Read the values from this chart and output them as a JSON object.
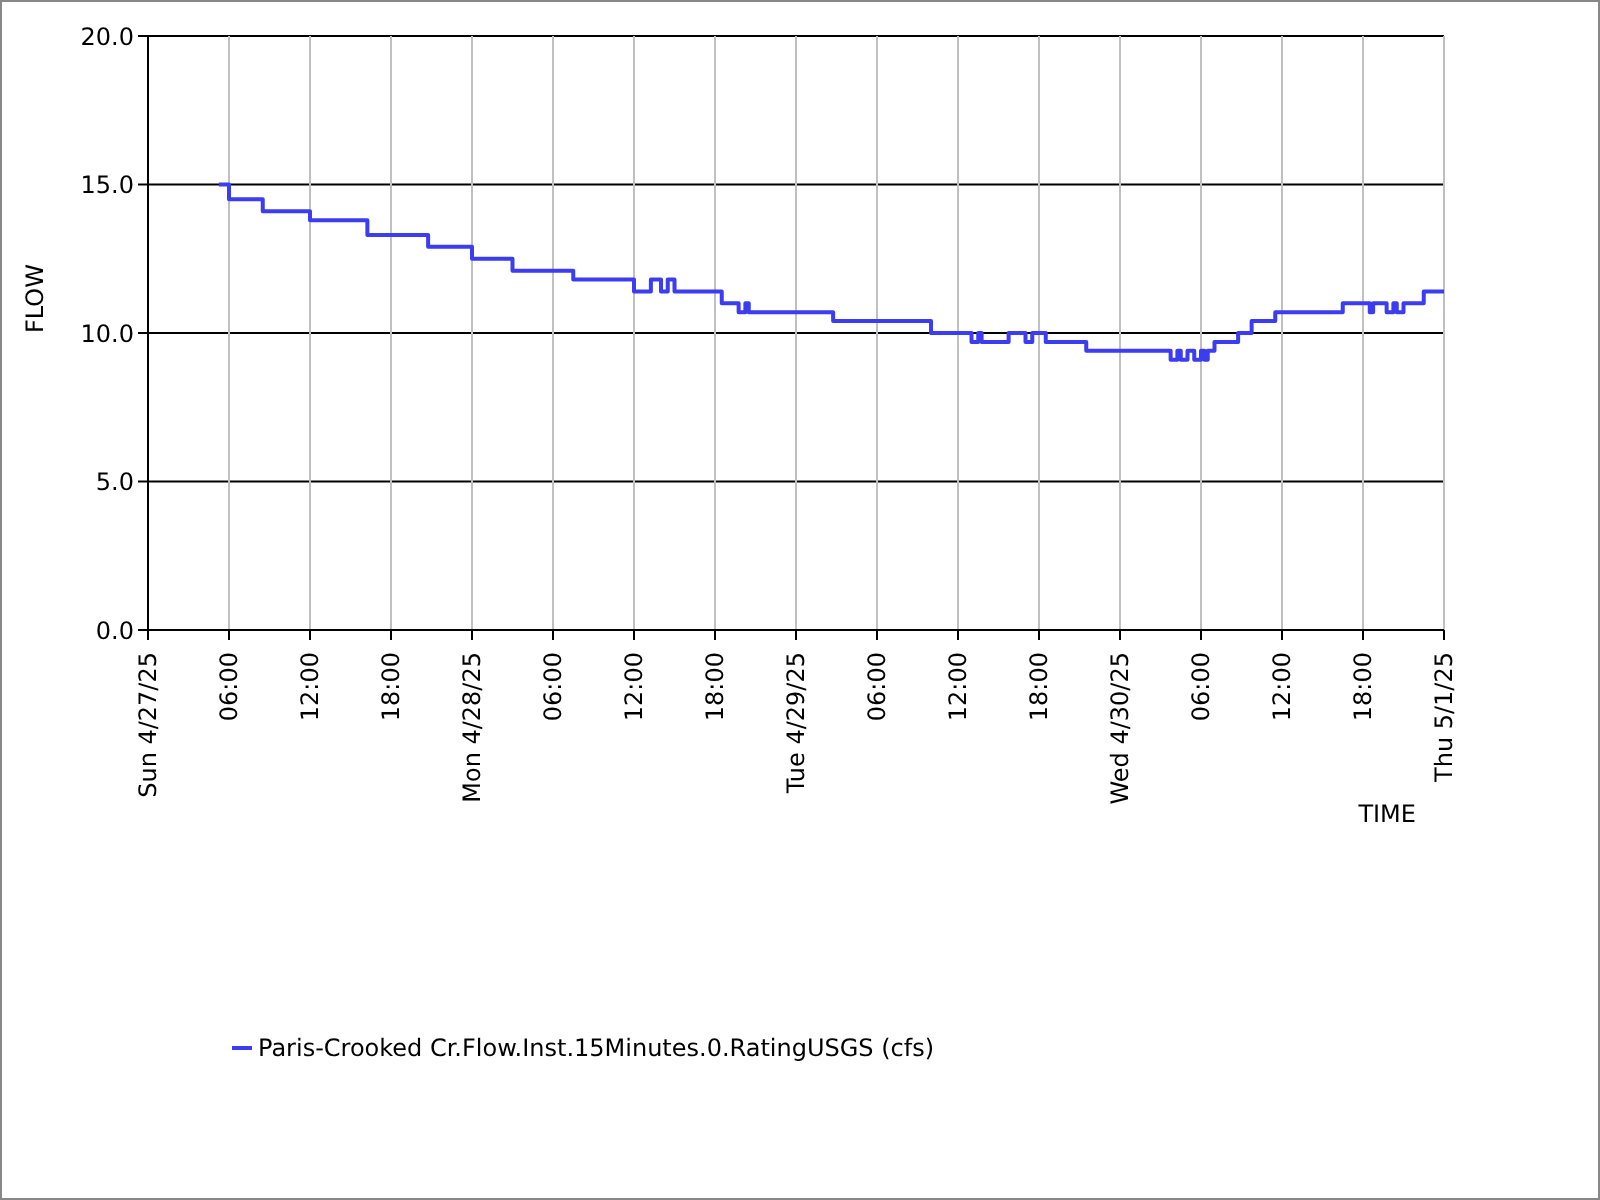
{
  "chart_data": {
    "type": "step",
    "xlabel": "TIME",
    "ylabel": "FLOW",
    "x": [
      "--04-27T05:15",
      "--04-27T06:00",
      "--04-27T08:30",
      "--04-27T12:00",
      "--04-27T16:15",
      "--04-27T20:45",
      "--04-28T00:00",
      "--04-28T03:00",
      "--04-28T07:30",
      "--04-28T12:00",
      "--04-28T13:15",
      "--04-28T14:00",
      "--04-28T14:30",
      "--04-28T15:00",
      "--04-28T18:30",
      "--04-28T19:45",
      "--04-28T20:15",
      "--04-28T20:30",
      "--04-29T02:45",
      "--04-29T10:00",
      "--04-29T13:00",
      "--04-29T13:30",
      "--04-29T13:45",
      "--04-29T15:45",
      "--04-29T17:00",
      "--04-29T17:30",
      "--04-29T18:30",
      "--04-29T21:30",
      "--04-30T03:45",
      "--04-30T04:15",
      "--04-30T04:30",
      "--04-30T05:00",
      "--04-30T05:30",
      "--04-30T06:00",
      "--04-30T06:15",
      "--04-30T06:30",
      "--04-30T07:00",
      "--04-30T08:45",
      "--04-30T09:45",
      "--04-30T11:30",
      "--04-30T16:30",
      "--04-30T18:30",
      "--04-30T18:45",
      "--04-30T19:45",
      "--04-30T20:15",
      "--04-30T20:30",
      "--04-30T21:00",
      "--04-30T22:30",
      "--05-01T00:00"
    ],
    "series": [
      {
        "name": "Paris-Crooked Cr.Flow.Inst.15Minutes.0.RatingUSGS (cfs)",
        "color": "#3c3cf0",
        "values": [
          15.0,
          14.5,
          14.1,
          13.8,
          13.3,
          12.9,
          12.5,
          12.1,
          11.8,
          11.4,
          11.8,
          11.4,
          11.8,
          11.4,
          11.0,
          10.7,
          11.0,
          10.7,
          10.4,
          10.0,
          9.7,
          10.0,
          9.7,
          10.0,
          9.7,
          10.0,
          9.7,
          9.4,
          9.1,
          9.4,
          9.1,
          9.4,
          9.1,
          9.4,
          9.1,
          9.4,
          9.7,
          10.0,
          10.4,
          10.7,
          11.0,
          10.7,
          11.0,
          10.7,
          11.0,
          10.7,
          11.0,
          11.4,
          11.4
        ]
      }
    ],
    "xlim": [
      "--04-27T00:00",
      "--05-01T00:00"
    ],
    "xticks": [
      {
        "value": "--04-27T00:00",
        "label": "Sun 4/27/25"
      },
      {
        "value": "--04-27T06:00",
        "label": "06:00"
      },
      {
        "value": "--04-27T12:00",
        "label": "12:00"
      },
      {
        "value": "--04-27T18:00",
        "label": "18:00"
      },
      {
        "value": "--04-28T00:00",
        "label": "Mon 4/28/25"
      },
      {
        "value": "--04-28T06:00",
        "label": "06:00"
      },
      {
        "value": "--04-28T12:00",
        "label": "12:00"
      },
      {
        "value": "--04-28T18:00",
        "label": "18:00"
      },
      {
        "value": "--04-29T00:00",
        "label": "Tue 4/29/25"
      },
      {
        "value": "--04-29T06:00",
        "label": "06:00"
      },
      {
        "value": "--04-29T12:00",
        "label": "12:00"
      },
      {
        "value": "--04-29T18:00",
        "label": "18:00"
      },
      {
        "value": "--04-30T00:00",
        "label": "Wed 4/30/25"
      },
      {
        "value": "--04-30T06:00",
        "label": "06:00"
      },
      {
        "value": "--04-30T12:00",
        "label": "12:00"
      },
      {
        "value": "--04-30T18:00",
        "label": "18:00"
      },
      {
        "value": "--05-01T00:00",
        "label": "Thu 5/1/25"
      }
    ],
    "ylim": [
      0,
      20
    ],
    "yticks": [
      {
        "value": 0,
        "label": "0.0"
      },
      {
        "value": 5,
        "label": "5.0"
      },
      {
        "value": 10,
        "label": "10.0"
      },
      {
        "value": 15,
        "label": "15.0"
      },
      {
        "value": 20,
        "label": "20.0"
      }
    ],
    "grid": true,
    "legend": "bottom"
  }
}
